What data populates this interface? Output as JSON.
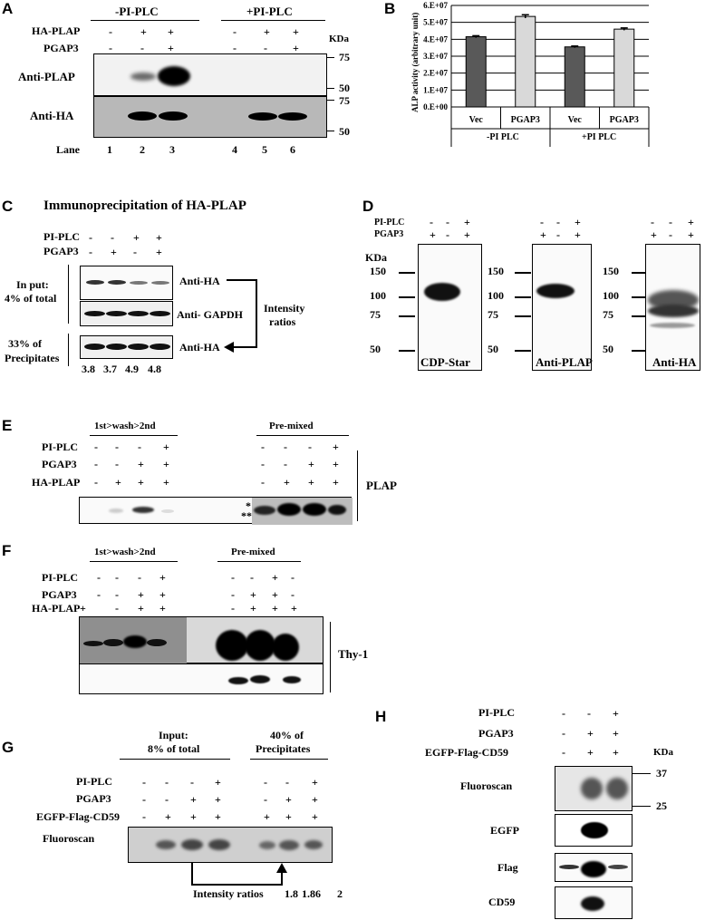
{
  "panel_a": {
    "label": "A",
    "group1": "-PI-PLC",
    "group2": "+PI-PLC",
    "row1": "HA-PLAP",
    "row2": "PGAP3",
    "kda": "KDa",
    "r1": [
      "-",
      "+",
      "+",
      "-",
      "+",
      "+"
    ],
    "r2": [
      "-",
      "-",
      "+",
      "-",
      "-",
      "+"
    ],
    "blot1": "Anti-PLAP",
    "blot2": "Anti-HA",
    "m75a": "75",
    "m50a": "50",
    "m75b": "75",
    "m50b": "50",
    "lane_label": "Lane",
    "lanes": [
      "1",
      "2",
      "3",
      "4",
      "5",
      "6"
    ]
  },
  "panel_b": {
    "label": "B",
    "ylabel": "ALP activity  (arbitrary unit)",
    "group1": "-PI PLC",
    "group2": "+PI PLC",
    "chart_data": {
      "type": "bar",
      "categories": [
        "Vec",
        "PGAP3",
        "Vec",
        "PGAP3"
      ],
      "values": [
        41500000,
        53500000,
        35500000,
        46000000
      ],
      "errors": [
        600000,
        1000000,
        500000,
        700000
      ],
      "colors": [
        "#595959",
        "#d9d9d9",
        "#595959",
        "#d9d9d9"
      ],
      "yticks": [
        "0.E+00",
        "1.E+07",
        "2.E+07",
        "3.E+07",
        "4.E+07",
        "5.E+07",
        "6.E+07"
      ],
      "ylim": [
        0,
        60000000
      ],
      "grid": true
    }
  },
  "panel_c": {
    "label": "C",
    "title": "Immunoprecipitation of HA-PLAP",
    "row1": "PI-PLC",
    "row2": "PGAP3",
    "r1": [
      "-",
      "-",
      "+",
      "+"
    ],
    "r2": [
      "-",
      "+",
      "-",
      "+"
    ],
    "input_label1": "In put:",
    "input_label2": "4% of total",
    "precip1": "33% of",
    "precip2": "Precipitates",
    "blot1": "Anti-HA",
    "blot2": "Anti- GAPDH",
    "blot3": "Anti-HA",
    "intensity1": "Intensity",
    "intensity2": "ratios",
    "ratios": [
      "3.8",
      "3.7",
      "4.9",
      "4.8"
    ]
  },
  "panel_d": {
    "label": "D",
    "row1": "PI-PLC",
    "row2": "PGAP3",
    "r1": [
      "-",
      "-",
      "+"
    ],
    "r2": [
      "+",
      "-",
      "+"
    ],
    "kda": "KDa",
    "markers": [
      "150",
      "100",
      "75",
      "50"
    ],
    "blot1": "CDP-Star",
    "blot2": "Anti-PLAP",
    "blot3": "Anti-HA"
  },
  "panel_e": {
    "label": "E",
    "header1": "1st>wash>2nd",
    "header2": "Pre-mixed",
    "row1": "PI-PLC",
    "row2": "PGAP3",
    "row3": "HA-PLAP",
    "r1": [
      "-",
      "-",
      "-",
      "+",
      "-",
      "-",
      "-",
      "+"
    ],
    "r2": [
      "-",
      "-",
      "+",
      "+",
      "-",
      "-",
      "+",
      "+"
    ],
    "r3": [
      "-",
      "+",
      "+",
      "+",
      "-",
      "+",
      "+",
      "+"
    ],
    "side": "PLAP",
    "star1": "*",
    "star2": "**"
  },
  "panel_f": {
    "label": "F",
    "header1": "1st>wash>2nd",
    "header2": "Pre-mixed",
    "row1": "PI-PLC",
    "row2": "PGAP3",
    "row3": "HA-PLAP",
    "r1": [
      "-",
      "-",
      "-",
      "+",
      "-",
      "-",
      "+",
      "-"
    ],
    "r2": [
      "-",
      "-",
      "+",
      "+",
      "-",
      "+",
      "+",
      "-"
    ],
    "r3": [
      "+",
      "-",
      "+",
      "+",
      "-",
      "+",
      "+",
      "+"
    ],
    "side": "Thy-1"
  },
  "panel_g": {
    "label": "G",
    "header1a": "Input:",
    "header1b": "8% of total",
    "header2a": "40% of",
    "header2b": "Precipitates",
    "row1": "PI-PLC",
    "row2": "PGAP3",
    "row3": "EGFP-Flag-CD59",
    "r1": [
      "-",
      "-",
      "-",
      "+",
      "-",
      "-",
      "+"
    ],
    "r2": [
      "-",
      "-",
      "+",
      "+",
      "-",
      "+",
      "+"
    ],
    "r3": [
      "-",
      "+",
      "+",
      "+",
      "+",
      "+",
      "+"
    ],
    "blot": "Fluoroscan",
    "ratio_label": "Intensity ratios",
    "ratios": [
      "1.8",
      "1.86",
      "2"
    ]
  },
  "panel_h": {
    "label": "H",
    "row1": "PI-PLC",
    "row2": "PGAP3",
    "row3": "EGFP-Flag-CD59",
    "kda": "KDa",
    "r1": [
      "-",
      "-",
      "+"
    ],
    "r2": [
      "-",
      "+",
      "+"
    ],
    "r3": [
      "-",
      "+",
      "+"
    ],
    "blot1": "Fluoroscan",
    "blot2": "EGFP",
    "blot3": "Flag",
    "blot4": "CD59",
    "m37": "37",
    "m25": "25"
  }
}
